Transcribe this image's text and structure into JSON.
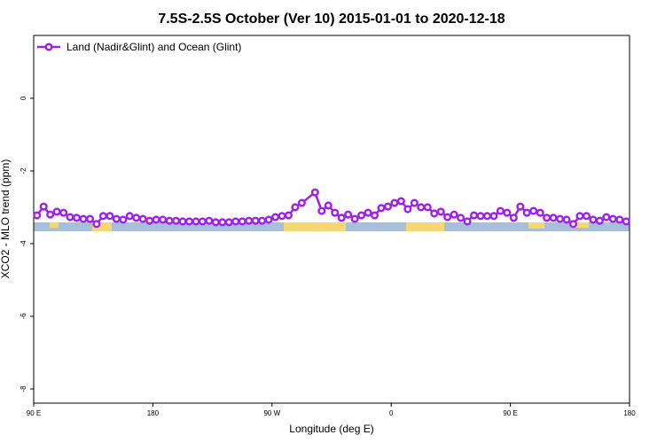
{
  "chart_data": {
    "type": "line",
    "title": "7.5S-2.5S October (Ver 10)   2015-01-01 to 2020-12-18",
    "x_label": "Longitude (deg E)",
    "y_label": "XCO2 - MLO trend (ppm)",
    "xlim": [
      90,
      540
    ],
    "ylim": [
      -8.39,
      1.73
    ],
    "xticks": [
      {
        "value": 90,
        "label": "90 E"
      },
      180,
      {
        "value": 270,
        "label": "90 W"
      },
      {
        "value": 360,
        "label": "0"
      },
      {
        "value": 450,
        "label": "90 E"
      },
      {
        "value": 540,
        "label": "180"
      }
    ],
    "yticks": [
      0,
      -2,
      -4,
      -6,
      -8
    ],
    "legend": "top-left",
    "x": [
      92.5,
      97.5,
      102.5,
      107.5,
      112.5,
      117.5,
      122.5,
      127.5,
      132.5,
      137.5,
      142.5,
      147.5,
      152.5,
      157.5,
      162.5,
      167.5,
      172.5,
      177.5,
      182.5,
      187.5,
      192.5,
      197.5,
      202.5,
      207.5,
      212.5,
      217.5,
      222.5,
      227.5,
      232.5,
      237.5,
      242.5,
      247.5,
      252.5,
      257.5,
      262.5,
      267.5,
      272.5,
      277.5,
      282.5,
      287.5,
      292.5,
      302.5,
      307.5,
      312.5,
      317.5,
      322.5,
      327.5,
      332.5,
      337.5,
      342.5,
      347.5,
      352.5,
      357.5,
      362.5,
      367.5,
      372.5,
      377.5,
      382.5,
      387.5,
      392.5,
      397.5,
      402.5,
      407.5,
      412.5,
      417.5,
      422.5,
      427.5,
      432.5,
      437.5,
      442.5,
      447.5,
      452.5,
      457.5,
      462.5,
      467.5,
      472.5,
      477.5,
      482.5,
      487.5,
      492.5,
      497.5,
      502.5,
      507.5,
      512.5,
      517.5,
      522.5,
      527.5,
      532.5,
      537.5
    ],
    "series": [
      {
        "name": "Land (Nadir&Glint) and Ocean (Glint)",
        "color": "#a020f0",
        "values": [
          -3.22,
          -2.98,
          -3.2,
          -3.12,
          -3.15,
          -3.27,
          -3.29,
          -3.32,
          -3.32,
          -3.46,
          -3.24,
          -3.24,
          -3.32,
          -3.34,
          -3.24,
          -3.29,
          -3.32,
          -3.37,
          -3.34,
          -3.34,
          -3.37,
          -3.37,
          -3.39,
          -3.39,
          -3.39,
          -3.39,
          -3.37,
          -3.41,
          -3.41,
          -3.41,
          -3.39,
          -3.39,
          -3.37,
          -3.37,
          -3.37,
          -3.34,
          -3.27,
          -3.24,
          -3.22,
          -3.0,
          -2.88,
          -2.59,
          -3.1,
          -2.95,
          -3.15,
          -3.29,
          -3.2,
          -3.32,
          -3.22,
          -3.15,
          -3.22,
          -3.02,
          -2.98,
          -2.88,
          -2.83,
          -3.05,
          -2.88,
          -3.0,
          -3.0,
          -3.17,
          -3.12,
          -3.27,
          -3.2,
          -3.29,
          -3.39,
          -3.22,
          -3.24,
          -3.24,
          -3.24,
          -3.1,
          -3.15,
          -3.29,
          -2.98,
          -3.15,
          -3.1,
          -3.15,
          -3.29,
          -3.29,
          -3.32,
          -3.34,
          -3.46,
          -3.24,
          -3.24,
          -3.34,
          -3.37,
          -3.27,
          -3.32,
          -3.34,
          -3.39
        ]
      }
    ]
  }
}
